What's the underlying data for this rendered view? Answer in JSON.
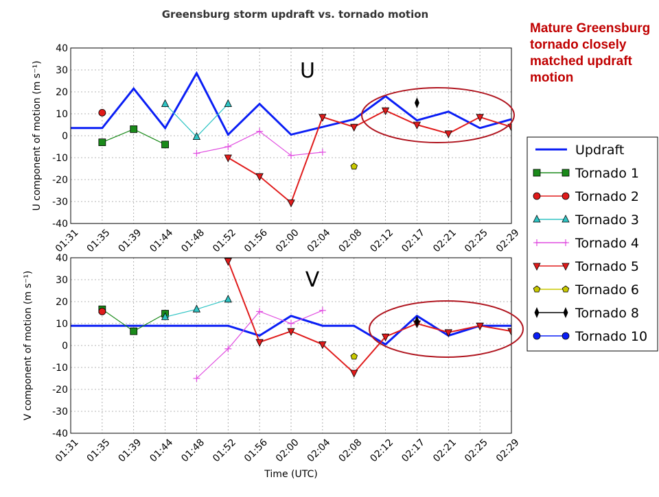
{
  "annotation": "Mature Greensburg tornado closely matched updraft motion",
  "colors": {
    "updraft": "#0a1ef5",
    "tornado1": "#1a8a1a",
    "tornado2": "#e01b1b",
    "tornado3": "#2ec4c4",
    "tornado4": "#e04ce0",
    "tornado5": "#e01b1b",
    "tornado6": "#c8c800",
    "tornado8": "#000000",
    "tornado10": "#0a1ef5",
    "ellipse": "#b0151f"
  },
  "chart_data": [
    {
      "type": "line",
      "title": "Greensburg storm updraft vs. tornado motion",
      "panel_label": "U",
      "xlabel": "",
      "ylabel": "U component of motion (m s⁻¹)",
      "ylim": [
        -40,
        40
      ],
      "yticks": [
        -40,
        -30,
        -20,
        -10,
        0,
        10,
        20,
        30,
        40
      ],
      "xticks": [
        "01:31",
        "01:35",
        "01:39",
        "01:44",
        "01:48",
        "01:52",
        "01:56",
        "02:00",
        "02:04",
        "02:08",
        "02:12",
        "02:17",
        "02:21",
        "02:25",
        "02:29"
      ],
      "grid": true,
      "series": [
        {
          "name": "Updraft",
          "marker": "none",
          "x": [
            "01:31",
            "01:35",
            "01:39",
            "01:44",
            "01:48",
            "01:52",
            "01:56",
            "02:00",
            "02:08",
            "02:12",
            "02:17",
            "02:21",
            "02:25",
            "02:29"
          ],
          "y": [
            3.5,
            3.5,
            21.5,
            3.5,
            28.5,
            0.5,
            14.5,
            0.5,
            7.5,
            18,
            7,
            11,
            3.5,
            7.5
          ]
        },
        {
          "name": "Tornado 1",
          "marker": "square",
          "x": [
            "01:35",
            "01:39",
            "01:44"
          ],
          "y": [
            -3,
            3,
            -4
          ]
        },
        {
          "name": "Tornado 2",
          "marker": "circle",
          "x": [
            "01:35"
          ],
          "y": [
            10.5
          ]
        },
        {
          "name": "Tornado 3",
          "marker": "triangle-up",
          "x": [
            "01:44",
            "01:48",
            "01:52"
          ],
          "y": [
            14.5,
            -0.5,
            14.5
          ]
        },
        {
          "name": "Tornado 4",
          "marker": "plus",
          "x": [
            "01:48",
            "01:52",
            "01:56",
            "02:00",
            "02:04"
          ],
          "y": [
            -8,
            -5,
            2,
            -9,
            -7.5
          ]
        },
        {
          "name": "Tornado 5",
          "marker": "triangle-down",
          "x": [
            "01:52",
            "01:56",
            "02:00",
            "02:04",
            "02:08",
            "02:12",
            "02:17",
            "02:21",
            "02:25",
            "02:29"
          ],
          "y": [
            -10,
            -18.5,
            -30.5,
            8.5,
            4,
            11.5,
            5,
            1,
            8.5,
            4
          ]
        },
        {
          "name": "Tornado 6",
          "marker": "pentagon",
          "x": [
            "02:08"
          ],
          "y": [
            -14
          ]
        },
        {
          "name": "Tornado 8",
          "marker": "thin-diamond",
          "x": [
            "02:17"
          ],
          "y": [
            15
          ]
        },
        {
          "name": "Tornado 10",
          "marker": "circle",
          "x": [],
          "y": []
        }
      ]
    },
    {
      "type": "line",
      "title": "",
      "panel_label": "V",
      "xlabel": "Time (UTC)",
      "ylabel": "V component of motion (m s⁻¹)",
      "ylim": [
        -40,
        40
      ],
      "yticks": [
        -40,
        -30,
        -20,
        -10,
        0,
        10,
        20,
        30,
        40
      ],
      "xticks": [
        "01:31",
        "01:35",
        "01:39",
        "01:44",
        "01:48",
        "01:52",
        "01:56",
        "02:00",
        "02:04",
        "02:08",
        "02:12",
        "02:17",
        "02:21",
        "02:25",
        "02:29"
      ],
      "grid": true,
      "series": [
        {
          "name": "Updraft",
          "marker": "none",
          "x": [
            "01:31",
            "01:35",
            "01:39",
            "01:44",
            "01:48",
            "01:52",
            "01:56",
            "02:00",
            "02:04",
            "02:08",
            "02:12",
            "02:17",
            "02:21",
            "02:25",
            "02:29"
          ],
          "y": [
            9,
            9,
            9,
            9,
            9,
            9,
            4.5,
            13.5,
            9,
            9,
            0.5,
            13.5,
            4.5,
            9,
            9
          ]
        },
        {
          "name": "Tornado 1",
          "marker": "square",
          "x": [
            "01:35",
            "01:39",
            "01:44"
          ],
          "y": [
            16.5,
            6.5,
            14.5
          ]
        },
        {
          "name": "Tornado 2",
          "marker": "circle",
          "x": [
            "01:35"
          ],
          "y": [
            15.5
          ]
        },
        {
          "name": "Tornado 3",
          "marker": "triangle-up",
          "x": [
            "01:44",
            "01:48",
            "01:52"
          ],
          "y": [
            13,
            16.5,
            21
          ]
        },
        {
          "name": "Tornado 4",
          "marker": "plus",
          "x": [
            "01:48",
            "01:52",
            "01:56",
            "02:00",
            "02:04"
          ],
          "y": [
            -15,
            -1.5,
            15.5,
            10,
            16
          ]
        },
        {
          "name": "Tornado 5",
          "marker": "triangle-down",
          "x": [
            "01:52",
            "01:56",
            "02:00",
            "02:04",
            "02:08",
            "02:12",
            "02:17",
            "02:21",
            "02:25",
            "02:29"
          ],
          "y": [
            38.5,
            1.5,
            6.5,
            0.5,
            -12.5,
            4,
            10,
            6,
            9,
            6.5
          ]
        },
        {
          "name": "Tornado 6",
          "marker": "pentagon",
          "x": [
            "02:08"
          ],
          "y": [
            -5
          ]
        },
        {
          "name": "Tornado 8",
          "marker": "thin-diamond",
          "x": [
            "02:17"
          ],
          "y": [
            11
          ]
        },
        {
          "name": "Tornado 10",
          "marker": "circle",
          "x": [],
          "y": []
        }
      ]
    }
  ],
  "legend": {
    "placement": "right",
    "entries": [
      "Updraft",
      "Tornado 1",
      "Tornado 2",
      "Tornado 3",
      "Tornado 4",
      "Tornado 5",
      "Tornado 6",
      "Tornado 8",
      "Tornado 10"
    ]
  }
}
